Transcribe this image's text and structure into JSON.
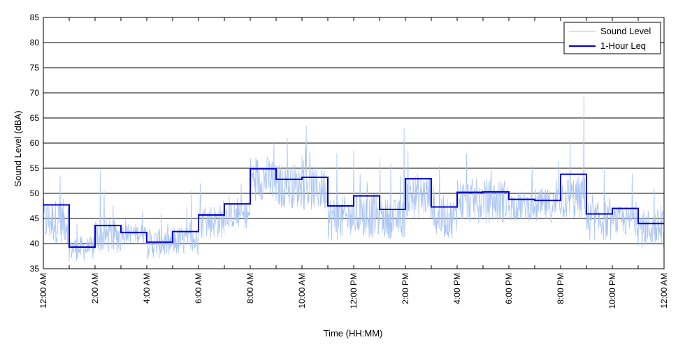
{
  "chart_data": {
    "type": "line",
    "title": "",
    "xlabel": "Time (HH:MM)",
    "ylabel": "Sound Level (dBA)",
    "xlim": [
      0,
      24
    ],
    "ylim": [
      35,
      85
    ],
    "y_ticks": [
      35,
      40,
      45,
      50,
      55,
      60,
      65,
      70,
      75,
      80,
      85
    ],
    "x_ticks": [
      0,
      2,
      4,
      6,
      8,
      10,
      12,
      14,
      16,
      18,
      20,
      22,
      24
    ],
    "x_tick_labels": [
      "12:00 AM",
      "2:00 AM",
      "4:00 AM",
      "6:00 AM",
      "8:00 AM",
      "10:00 AM",
      "12:00 PM",
      "2:00 PM",
      "4:00 PM",
      "6:00 PM",
      "8:00 PM",
      "10:00 PM",
      "12:00 AM"
    ],
    "grid": "horizontal",
    "legend_position": "top-right",
    "series": [
      {
        "name": "Sound Level",
        "color": "#a9c4f5",
        "style": "thin-line",
        "hourly_base": [
          44.5,
          39.0,
          41.5,
          42.0,
          40.0,
          40.5,
          44.5,
          45.5,
          53.0,
          51.5,
          51.0,
          45.0,
          45.5,
          45.0,
          49.5,
          45.0,
          48.5,
          48.5,
          47.5,
          47.5,
          49.0,
          44.5,
          44.5,
          43.0
        ],
        "hourly_min": [
          39.5,
          36.5,
          38.0,
          40.0,
          37.0,
          37.5,
          41.0,
          43.0,
          48.0,
          47.0,
          45.0,
          40.5,
          40.0,
          41.0,
          41.5,
          41.0,
          43.5,
          44.0,
          44.5,
          44.0,
          44.0,
          40.5,
          41.5,
          39.0
        ],
        "hourly_max": [
          53.5,
          44.0,
          54.5,
          46.5,
          46.0,
          50.5,
          52.0,
          52.0,
          60.0,
          61.0,
          63.5,
          58.0,
          58.5,
          63.0,
          58.5,
          55.5,
          58.0,
          55.0,
          55.5,
          56.5,
          69.5,
          55.0,
          54.0,
          51.0
        ]
      },
      {
        "name": "1-Hour Leq",
        "color": "#0000cc",
        "style": "step",
        "values": [
          47.7,
          39.3,
          43.6,
          42.2,
          40.3,
          42.4,
          45.7,
          47.9,
          54.9,
          52.8,
          53.2,
          47.5,
          49.5,
          46.8,
          52.9,
          47.3,
          50.2,
          50.3,
          48.8,
          48.6,
          53.8,
          45.9,
          47.0,
          44.0
        ]
      }
    ]
  }
}
